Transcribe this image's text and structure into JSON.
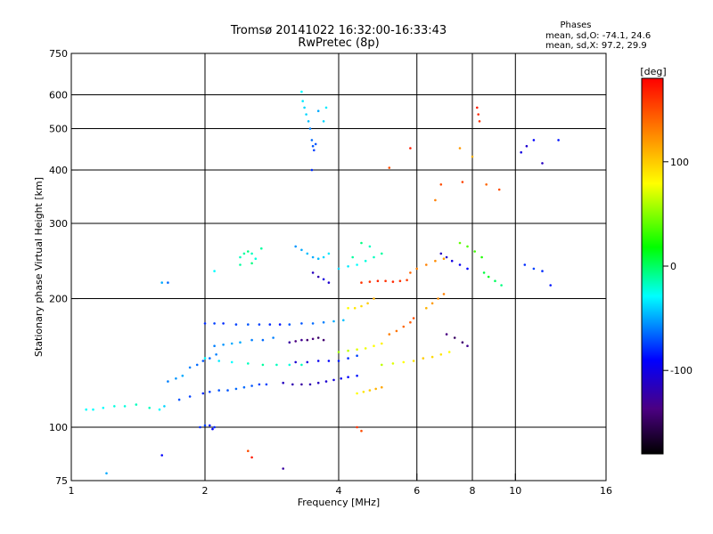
{
  "chart_data": {
    "type": "scatter",
    "title": "Tromsø 20141022 16:32:00-16:33:43",
    "subtitle": "RwPretec (8p)",
    "xlabel": "Frequency [MHz]",
    "ylabel": "Stationary phase Virtual Height [km]",
    "x_scale": "log",
    "y_scale": "log",
    "xlim": [
      1,
      16
    ],
    "ylim": [
      75,
      750
    ],
    "x_ticks": [
      1,
      2,
      4,
      6,
      8,
      10,
      16
    ],
    "x_tick_labels": [
      "1",
      "2",
      "4",
      "6",
      "8",
      "10",
      "16"
    ],
    "y_ticks": [
      75,
      100,
      200,
      300,
      400,
      500,
      600,
      750
    ],
    "y_tick_labels": [
      "75",
      "100",
      "200",
      "300",
      "400",
      "500",
      "600",
      "750"
    ],
    "x_gridlines": [
      2,
      4,
      6,
      8,
      10
    ],
    "y_gridlines": [
      100,
      200,
      300,
      400,
      500,
      600
    ],
    "grid": true,
    "phase_info": {
      "heading": "Phases",
      "line_o": "mean, sd,O: -74.1, 24.6",
      "line_x": "mean, sd,X:  97.2, 29.9"
    },
    "colorbar": {
      "label": "[deg]",
      "range": [
        -180,
        180
      ],
      "ticks": [
        100,
        0,
        -100
      ],
      "tick_labels": [
        "100",
        "0",
        "-100"
      ],
      "colormap": "rainbow"
    },
    "series": [
      {
        "points": [
          [
            1.08,
            110,
            -40
          ],
          [
            1.12,
            110,
            -40
          ],
          [
            1.18,
            111,
            -40
          ],
          [
            1.25,
            112,
            -35
          ],
          [
            1.32,
            112,
            -35
          ],
          [
            1.4,
            113,
            -30
          ],
          [
            1.5,
            111,
            -30
          ],
          [
            1.58,
            110,
            -40
          ],
          [
            1.62,
            112,
            -50
          ],
          [
            1.65,
            128,
            -70
          ],
          [
            1.72,
            130,
            -65
          ],
          [
            1.78,
            132,
            -60
          ],
          [
            1.85,
            138,
            -70
          ],
          [
            1.92,
            140,
            -75
          ],
          [
            1.98,
            143,
            -80
          ],
          [
            2.05,
            145,
            -75
          ],
          [
            2.12,
            148,
            -70
          ],
          [
            1.75,
            116,
            -80
          ],
          [
            1.85,
            118,
            -85
          ],
          [
            1.95,
            100,
            -90
          ],
          [
            2.0,
            101,
            -85
          ],
          [
            2.05,
            101,
            -95
          ],
          [
            2.1,
            100,
            -90
          ],
          [
            2.08,
            99,
            -100
          ],
          [
            1.98,
            120,
            -90
          ],
          [
            2.05,
            121,
            -85
          ],
          [
            2.15,
            122,
            -80
          ],
          [
            2.25,
            122,
            -80
          ],
          [
            2.35,
            123,
            -75
          ],
          [
            2.45,
            124,
            -75
          ],
          [
            2.55,
            125,
            -80
          ],
          [
            2.65,
            126,
            -85
          ],
          [
            2.75,
            126,
            -85
          ],
          [
            2.0,
            175,
            -90
          ],
          [
            2.1,
            175,
            -85
          ],
          [
            2.2,
            175,
            -90
          ],
          [
            2.35,
            174,
            -85
          ],
          [
            2.5,
            174,
            -80
          ],
          [
            2.65,
            174,
            -85
          ],
          [
            2.8,
            174,
            -90
          ],
          [
            2.95,
            174,
            -95
          ],
          [
            3.1,
            174,
            -80
          ],
          [
            2.1,
            155,
            -70
          ],
          [
            2.2,
            156,
            -65
          ],
          [
            2.3,
            157,
            -60
          ],
          [
            2.4,
            158,
            -60
          ],
          [
            2.55,
            160,
            -70
          ],
          [
            2.7,
            160,
            -75
          ],
          [
            2.85,
            162,
            -70
          ],
          [
            2.4,
            250,
            -30
          ],
          [
            2.45,
            255,
            -25
          ],
          [
            2.5,
            258,
            -20
          ],
          [
            2.55,
            255,
            -30
          ],
          [
            2.6,
            248,
            -35
          ],
          [
            2.68,
            262,
            -25
          ],
          [
            2.4,
            240,
            -25
          ],
          [
            2.55,
            242,
            -20
          ],
          [
            1.6,
            218,
            -60
          ],
          [
            1.65,
            218,
            -75
          ],
          [
            2.1,
            232,
            -40
          ],
          [
            2.0,
            145,
            -40
          ],
          [
            2.15,
            143,
            -45
          ],
          [
            2.3,
            142,
            -40
          ],
          [
            2.5,
            141,
            -30
          ],
          [
            2.7,
            140,
            -25
          ],
          [
            2.9,
            140,
            -30
          ],
          [
            3.1,
            140,
            -35
          ],
          [
            3.3,
            140,
            -30
          ],
          [
            3.0,
            127,
            -120
          ],
          [
            3.15,
            126,
            -125
          ],
          [
            3.3,
            126,
            -130
          ],
          [
            3.45,
            126,
            -125
          ],
          [
            3.6,
            127,
            -120
          ],
          [
            3.75,
            128,
            -115
          ],
          [
            3.9,
            129,
            -110
          ],
          [
            4.05,
            130,
            -105
          ],
          [
            4.2,
            131,
            -100
          ],
          [
            4.4,
            132,
            -95
          ],
          [
            3.1,
            158,
            -130
          ],
          [
            3.2,
            159,
            -140
          ],
          [
            3.3,
            160,
            -135
          ],
          [
            3.4,
            160,
            -145
          ],
          [
            3.5,
            161,
            -140
          ],
          [
            3.6,
            162,
            -150
          ],
          [
            3.7,
            160,
            -145
          ],
          [
            3.2,
            142,
            -115
          ],
          [
            3.4,
            142,
            -110
          ],
          [
            3.6,
            143,
            -105
          ],
          [
            3.8,
            143,
            -100
          ],
          [
            4.0,
            143,
            -95
          ],
          [
            4.2,
            145,
            -90
          ],
          [
            4.4,
            147,
            -85
          ],
          [
            3.3,
            610,
            -40
          ],
          [
            3.32,
            580,
            -45
          ],
          [
            3.35,
            560,
            -50
          ],
          [
            3.38,
            540,
            -50
          ],
          [
            3.42,
            520,
            -55
          ],
          [
            3.45,
            500,
            -70
          ],
          [
            3.48,
            470,
            -75
          ],
          [
            3.5,
            455,
            -80
          ],
          [
            3.52,
            445,
            -85
          ],
          [
            3.55,
            460,
            -80
          ],
          [
            3.48,
            400,
            -90
          ],
          [
            3.6,
            550,
            -60
          ],
          [
            3.7,
            520,
            -50
          ],
          [
            3.75,
            560,
            -45
          ],
          [
            3.2,
            265,
            -65
          ],
          [
            3.3,
            260,
            -60
          ],
          [
            3.4,
            255,
            -55
          ],
          [
            3.5,
            250,
            -60
          ],
          [
            3.6,
            248,
            -55
          ],
          [
            3.7,
            250,
            -50
          ],
          [
            3.8,
            255,
            -45
          ],
          [
            3.5,
            230,
            -120
          ],
          [
            3.6,
            225,
            -125
          ],
          [
            3.7,
            222,
            -110
          ],
          [
            3.8,
            218,
            -115
          ],
          [
            3.3,
            175,
            -80
          ],
          [
            3.5,
            175,
            -75
          ],
          [
            3.7,
            176,
            -70
          ],
          [
            3.9,
            177,
            -60
          ],
          [
            4.1,
            178,
            -55
          ],
          [
            4.0,
            235,
            -50
          ],
          [
            4.2,
            238,
            -45
          ],
          [
            4.4,
            240,
            -40
          ],
          [
            4.6,
            245,
            -35
          ],
          [
            4.8,
            250,
            -30
          ],
          [
            5.0,
            255,
            -25
          ],
          [
            4.3,
            250,
            -25
          ],
          [
            4.5,
            270,
            -20
          ],
          [
            4.7,
            265,
            -30
          ],
          [
            4.2,
            190,
            80
          ],
          [
            4.35,
            190,
            90
          ],
          [
            4.5,
            192,
            95
          ],
          [
            4.65,
            195,
            100
          ],
          [
            4.8,
            200,
            110
          ],
          [
            4.0,
            150,
            50
          ],
          [
            4.2,
            151,
            60
          ],
          [
            4.4,
            152,
            70
          ],
          [
            4.6,
            153,
            75
          ],
          [
            4.8,
            155,
            80
          ],
          [
            5.0,
            157,
            85
          ],
          [
            4.4,
            120,
            80
          ],
          [
            4.55,
            121,
            90
          ],
          [
            4.7,
            122,
            100
          ],
          [
            4.85,
            123,
            110
          ],
          [
            5.0,
            124,
            115
          ],
          [
            4.5,
            218,
            160
          ],
          [
            4.7,
            219,
            160
          ],
          [
            4.9,
            220,
            165
          ],
          [
            5.1,
            220,
            160
          ],
          [
            5.3,
            219,
            165
          ],
          [
            5.5,
            220,
            160
          ],
          [
            5.7,
            221,
            155
          ],
          [
            5.0,
            140,
            60
          ],
          [
            5.3,
            141,
            70
          ],
          [
            5.6,
            142,
            80
          ],
          [
            5.9,
            143,
            90
          ],
          [
            6.2,
            145,
            100
          ],
          [
            6.5,
            146,
            95
          ],
          [
            6.8,
            148,
            90
          ],
          [
            7.1,
            150,
            80
          ],
          [
            5.2,
            165,
            130
          ],
          [
            5.4,
            168,
            135
          ],
          [
            5.6,
            172,
            140
          ],
          [
            5.8,
            176,
            145
          ],
          [
            5.9,
            180,
            150
          ],
          [
            5.8,
            230,
            140
          ],
          [
            6.0,
            235,
            130
          ],
          [
            6.3,
            240,
            130
          ],
          [
            6.6,
            245,
            125
          ],
          [
            6.9,
            248,
            120
          ],
          [
            6.3,
            190,
            110
          ],
          [
            6.5,
            195,
            120
          ],
          [
            6.7,
            200,
            125
          ],
          [
            6.9,
            205,
            130
          ],
          [
            6.8,
            255,
            -120
          ],
          [
            7.0,
            250,
            -115
          ],
          [
            7.2,
            245,
            -110
          ],
          [
            7.5,
            240,
            -105
          ],
          [
            7.8,
            235,
            -100
          ],
          [
            7.0,
            165,
            -140
          ],
          [
            7.3,
            162,
            -150
          ],
          [
            7.6,
            158,
            -145
          ],
          [
            7.8,
            155,
            -135
          ],
          [
            7.5,
            270,
            30
          ],
          [
            7.8,
            265,
            25
          ],
          [
            8.1,
            258,
            20
          ],
          [
            8.4,
            250,
            10
          ],
          [
            8.2,
            560,
            170
          ],
          [
            8.25,
            540,
            165
          ],
          [
            8.3,
            520,
            160
          ],
          [
            8.5,
            230,
            -10
          ],
          [
            8.7,
            225,
            -5
          ],
          [
            9.0,
            220,
            -15
          ],
          [
            9.3,
            215,
            -20
          ],
          [
            10.3,
            440,
            -110
          ],
          [
            10.6,
            455,
            -115
          ],
          [
            11.0,
            470,
            -100
          ],
          [
            12.5,
            470,
            -95
          ],
          [
            11.5,
            415,
            -120
          ],
          [
            10.5,
            240,
            -90
          ],
          [
            11.0,
            235,
            -85
          ],
          [
            11.5,
            232,
            -90
          ],
          [
            12.0,
            215,
            -95
          ],
          [
            4.4,
            100,
            160
          ],
          [
            4.5,
            98,
            150
          ],
          [
            2.5,
            88,
            150
          ],
          [
            2.55,
            85,
            170
          ],
          [
            1.6,
            86,
            -100
          ],
          [
            1.2,
            78,
            -60
          ],
          [
            3.0,
            80,
            -130
          ],
          [
            5.2,
            405,
            150
          ],
          [
            5.8,
            450,
            170
          ],
          [
            6.8,
            370,
            150
          ],
          [
            7.6,
            375,
            155
          ],
          [
            8.6,
            370,
            140
          ],
          [
            9.2,
            360,
            150
          ],
          [
            7.5,
            450,
            120
          ],
          [
            6.6,
            340,
            130
          ],
          [
            8.0,
            430,
            110
          ]
        ]
      }
    ]
  }
}
